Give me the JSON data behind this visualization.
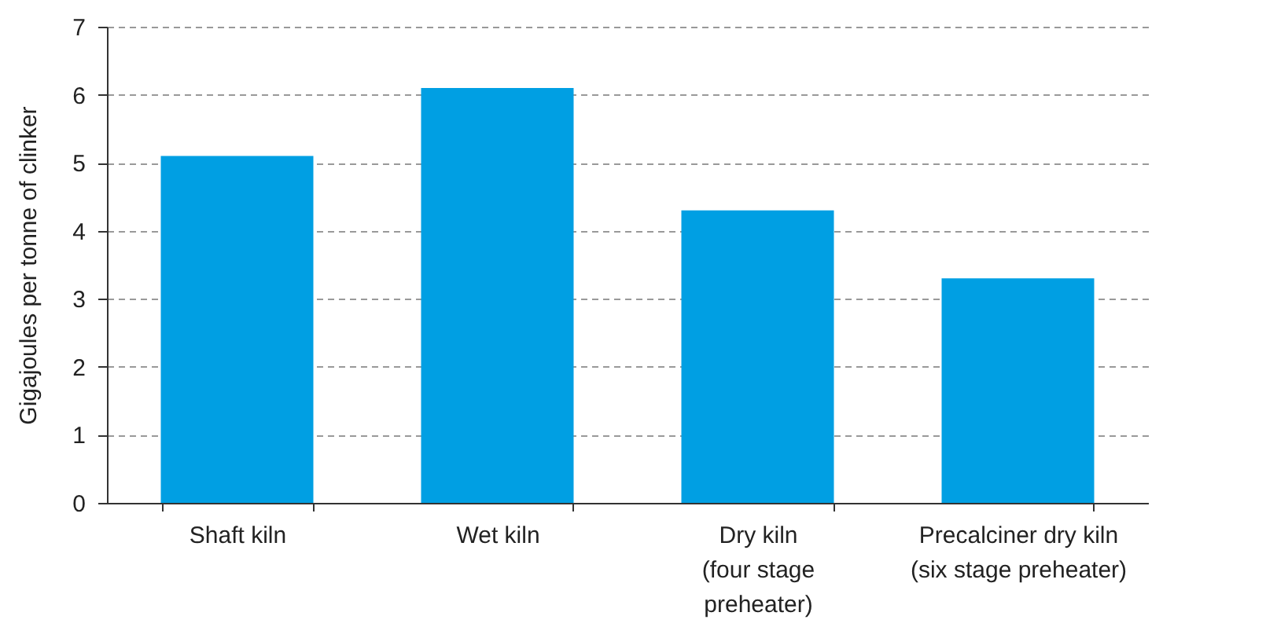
{
  "chart_data": {
    "type": "bar",
    "ylabel": "Gigajoules per tonne of clinker",
    "categories": [
      "Shaft kiln",
      "Wet kiln",
      "Dry kiln\n(four stage\npreheater)",
      "Precalciner dry kiln\n(six stage preheater)"
    ],
    "values": [
      5.1,
      6.1,
      4.3,
      3.3
    ],
    "color": "#009fe3",
    "ylim": [
      0,
      7
    ],
    "yticks": [
      0,
      1,
      2,
      3,
      4,
      5,
      6,
      7
    ],
    "grid": "y"
  }
}
